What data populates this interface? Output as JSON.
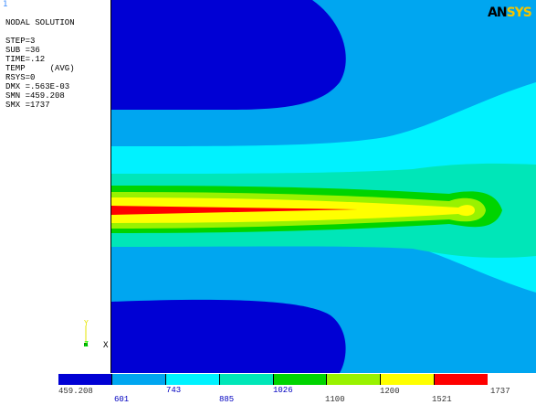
{
  "window_number": "1",
  "header": "NODAL SOLUTION",
  "info": [
    "STEP=3",
    "SUB =36",
    "TIME=.12",
    "TEMP     (AVG)",
    "RSYS=0",
    "DMX =.563E-03",
    "SMN =459.208",
    "SMX =1737"
  ],
  "logo": {
    "part1": "AN",
    "part2": "SYS"
  },
  "triad": {
    "y_label": "Y",
    "z_label": "Z",
    "x_label": "X"
  },
  "contour_colors": {
    "band_1": "#0000d4",
    "band_2": "#00a6f0",
    "band_3": "#00f2ff",
    "band_4": "#00e6b8",
    "band_5": "#00d400",
    "band_6": "#99f200",
    "band_7": "#ffff00",
    "band_8": "#ff0000"
  },
  "legend": {
    "colors": [
      "#0000d4",
      "#00a6f0",
      "#00f2ff",
      "#00e6b8",
      "#00d400",
      "#99f200",
      "#ffff00",
      "#ff0000"
    ],
    "labels_top": [
      "459.208",
      "1200",
      "1737"
    ],
    "labels_bottom": [
      "1100",
      "1521"
    ],
    "labels_obscured": [
      "601",
      "743",
      "885",
      "1026"
    ]
  }
}
